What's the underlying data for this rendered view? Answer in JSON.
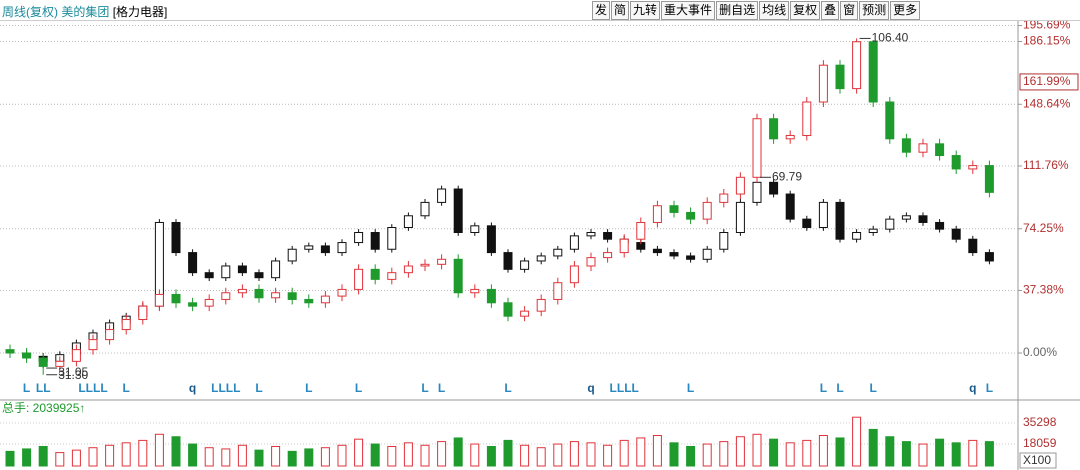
{
  "chart_data": {
    "type": "candlestick",
    "header": {
      "period": "周线(复权)",
      "main": "美的集团",
      "overlay": "[格力电器]"
    },
    "toolbar": [
      "发",
      "简",
      "九转",
      "重大事件",
      "删自选",
      "均线",
      "复权",
      "叠",
      "窗",
      "预测",
      "更多"
    ],
    "ylim": [
      -26.3,
      200.2
    ],
    "yticks": [
      {
        "value": 195.69,
        "label": "195.69%"
      },
      {
        "value": 186.15,
        "label": "186.15%"
      },
      {
        "value": 148.64,
        "label": "148.64%"
      },
      {
        "value": 111.76,
        "label": "111.76%"
      },
      {
        "value": 74.25,
        "label": "74.25%"
      },
      {
        "value": 37.38,
        "label": "37.38%"
      },
      {
        "value": 0,
        "label": "0.00%"
      }
    ],
    "current_label": {
      "value": 161.99,
      "label": "161.99%"
    },
    "grid": true,
    "series": [
      {
        "up_color": "#e0333a",
        "down_color": "#1f9b2d",
        "open": [
          2,
          0,
          -3,
          -8,
          -5,
          2,
          8,
          14,
          20,
          28,
          35,
          30,
          28,
          32,
          36,
          38,
          33,
          36,
          32,
          30,
          34,
          38,
          50,
          44,
          48,
          52,
          53,
          56,
          36,
          38,
          30,
          22,
          25,
          32,
          42,
          52,
          57,
          60,
          68,
          78,
          88,
          84,
          80,
          90,
          95,
          105,
          140,
          128,
          130,
          150,
          172,
          158,
          186,
          150,
          128,
          120,
          125,
          118,
          110,
          112
        ],
        "high": [
          5,
          3,
          0,
          -2,
          5,
          11,
          17,
          23,
          31,
          38,
          38,
          33,
          35,
          39,
          41,
          41,
          39,
          39,
          35,
          37,
          41,
          53,
          53,
          51,
          55,
          56,
          59,
          59,
          41,
          41,
          33,
          28,
          35,
          45,
          55,
          60,
          63,
          71,
          81,
          91,
          91,
          87,
          93,
          98,
          108,
          143,
          143,
          133,
          153,
          175,
          175,
          188,
          187,
          153,
          131,
          128,
          128,
          121,
          115,
          115
        ],
        "low": [
          -3,
          -6,
          -13,
          -11,
          -8,
          -1,
          5,
          11,
          17,
          25,
          27,
          25,
          25,
          29,
          33,
          30,
          30,
          29,
          27,
          27,
          31,
          35,
          41,
          41,
          45,
          49,
          50,
          33,
          33,
          27,
          19,
          19,
          22,
          29,
          39,
          49,
          54,
          57,
          65,
          75,
          81,
          77,
          77,
          87,
          92,
          102,
          125,
          125,
          127,
          147,
          155,
          155,
          147,
          125,
          117,
          117,
          115,
          107,
          107,
          93
        ],
        "close": [
          0,
          -3,
          -8,
          -5,
          2,
          8,
          14,
          20,
          28,
          35,
          30,
          28,
          32,
          36,
          38,
          33,
          36,
          32,
          30,
          34,
          38,
          50,
          44,
          48,
          52,
          53,
          56,
          36,
          38,
          30,
          22,
          25,
          32,
          42,
          52,
          57,
          60,
          68,
          78,
          88,
          84,
          80,
          90,
          95,
          105,
          140,
          128,
          130,
          150,
          172,
          158,
          186,
          150,
          128,
          120,
          125,
          118,
          110,
          112,
          96
        ]
      },
      {
        "up_color": "#111111",
        "down_color": "#111111",
        "open": [
          1,
          0,
          -2,
          -5,
          -1,
          6,
          12,
          18,
          22,
          28,
          78,
          60,
          48,
          45,
          52,
          48,
          45,
          55,
          62,
          64,
          60,
          66,
          72,
          62,
          75,
          82,
          90,
          98,
          72,
          76,
          60,
          50,
          55,
          58,
          62,
          70,
          72,
          68,
          66,
          62,
          60,
          58,
          56,
          62,
          72,
          90,
          102,
          95,
          80,
          75,
          90,
          68,
          72,
          74,
          80,
          82,
          78,
          74,
          68,
          60
        ],
        "high": [
          3,
          2,
          0,
          1,
          8,
          14,
          20,
          24,
          30,
          80,
          80,
          62,
          50,
          54,
          54,
          50,
          57,
          64,
          66,
          66,
          68,
          74,
          74,
          77,
          84,
          92,
          100,
          100,
          78,
          78,
          62,
          57,
          60,
          64,
          72,
          74,
          74,
          70,
          68,
          64,
          62,
          60,
          64,
          74,
          92,
          105,
          104,
          97,
          82,
          92,
          92,
          74,
          76,
          82,
          84,
          84,
          80,
          76,
          70,
          62
        ],
        "low": [
          -2,
          -4,
          -9,
          -7,
          -3,
          4,
          10,
          16,
          20,
          26,
          58,
          46,
          43,
          43,
          46,
          43,
          43,
          53,
          60,
          58,
          58,
          64,
          60,
          60,
          73,
          80,
          88,
          70,
          70,
          58,
          48,
          48,
          53,
          56,
          60,
          68,
          66,
          64,
          60,
          58,
          56,
          54,
          54,
          60,
          70,
          88,
          93,
          78,
          73,
          73,
          66,
          66,
          70,
          72,
          78,
          76,
          72,
          66,
          58,
          53
        ],
        "close": [
          0,
          -2,
          -5,
          -1,
          6,
          12,
          18,
          22,
          28,
          78,
          60,
          48,
          45,
          52,
          48,
          45,
          55,
          62,
          64,
          60,
          66,
          72,
          62,
          75,
          82,
          90,
          98,
          72,
          76,
          60,
          50,
          55,
          58,
          62,
          70,
          72,
          68,
          66,
          62,
          60,
          58,
          56,
          62,
          72,
          90,
          102,
          95,
          80,
          75,
          90,
          68,
          72,
          74,
          80,
          82,
          78,
          74,
          68,
          60,
          55
        ]
      }
    ],
    "annotations": [
      {
        "series": 0,
        "index": 51,
        "at": "high",
        "text": "106.40"
      },
      {
        "series": 1,
        "index": 45,
        "at": "high",
        "text": "69.79"
      },
      {
        "series": 0,
        "index": 2,
        "at": "low",
        "text": "31.05"
      },
      {
        "series": 1,
        "index": 2,
        "at": "low",
        "text": "31.30"
      }
    ],
    "events": [
      {
        "index": 1,
        "label": "L"
      },
      {
        "index": 2,
        "label": "LL"
      },
      {
        "index": 5,
        "label": "LLLL"
      },
      {
        "index": 7,
        "label": "L"
      },
      {
        "index": 11,
        "label": "q"
      },
      {
        "index": 13,
        "label": "LLLL"
      },
      {
        "index": 15,
        "label": "L"
      },
      {
        "index": 18,
        "label": "L"
      },
      {
        "index": 21,
        "label": "L"
      },
      {
        "index": 25,
        "label": "L"
      },
      {
        "index": 26,
        "label": "L"
      },
      {
        "index": 30,
        "label": "L"
      },
      {
        "index": 35,
        "label": "q"
      },
      {
        "index": 37,
        "label": "LLLL"
      },
      {
        "index": 41,
        "label": "L"
      },
      {
        "index": 49,
        "label": "L"
      },
      {
        "index": 50,
        "label": "L"
      },
      {
        "index": 52,
        "label": "L"
      },
      {
        "index": 58,
        "label": "q"
      },
      {
        "index": 59,
        "label": "L"
      }
    ],
    "volume": {
      "label": "总手: 2039925↑",
      "values": [
        12000,
        14000,
        16000,
        11000,
        13000,
        15000,
        17000,
        19000,
        21000,
        26000,
        24000,
        18000,
        15000,
        14000,
        17000,
        13000,
        16000,
        12000,
        14000,
        15000,
        17000,
        22000,
        18000,
        16000,
        19000,
        17000,
        20000,
        23000,
        18000,
        16000,
        21000,
        17000,
        15000,
        18000,
        20000,
        19000,
        17000,
        21000,
        23000,
        25000,
        19000,
        16000,
        18000,
        20000,
        24000,
        26000,
        22000,
        19000,
        21000,
        25000,
        23000,
        40000,
        30000,
        24000,
        20000,
        18000,
        22000,
        19000,
        21000,
        20000
      ],
      "ylim": [
        0,
        41000
      ],
      "yticks": [
        35298,
        18059
      ],
      "unit": "X100"
    }
  }
}
